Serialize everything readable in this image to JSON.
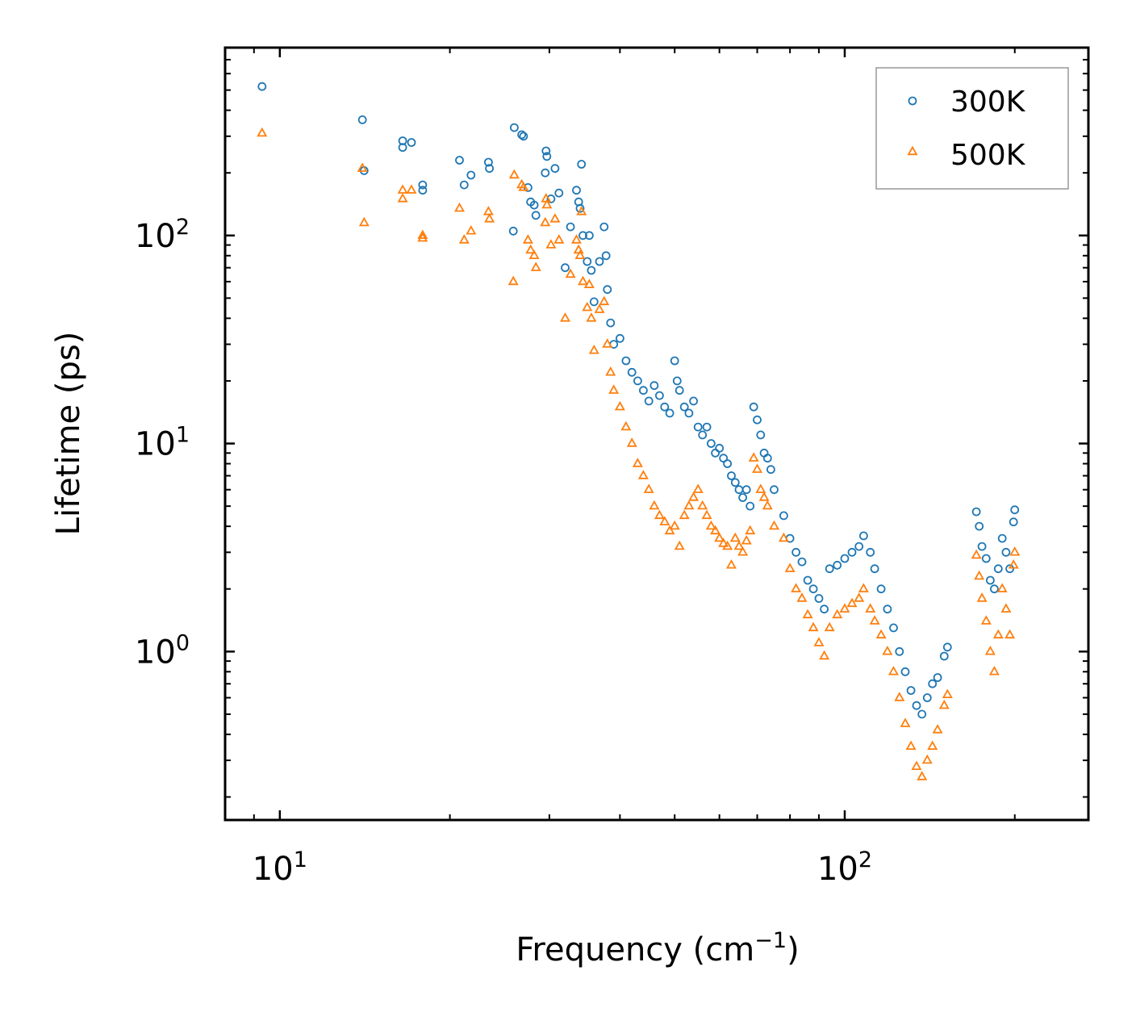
{
  "chart_data": {
    "type": "scatter",
    "title": "",
    "xlabel": "Frequency (cm",
    "xlabel_sup": "−1",
    "xlabel_end": ")",
    "ylabel": "Lifetime (ps)",
    "xscale": "log",
    "yscale": "log",
    "xlim": [
      8.0,
      270
    ],
    "ylim": [
      0.155,
      800
    ],
    "legend_position": "top-right",
    "x_ticks": [
      {
        "base": "10",
        "exp": "1",
        "value": 10
      },
      {
        "base": "10",
        "exp": "2",
        "value": 100
      }
    ],
    "y_ticks": [
      {
        "base": "10",
        "exp": "0",
        "value": 1
      },
      {
        "base": "10",
        "exp": "1",
        "value": 10
      },
      {
        "base": "10",
        "exp": "2",
        "value": 100
      }
    ],
    "series": [
      {
        "name": "300K",
        "color": "#1f77b4",
        "marker": "circle",
        "points": [
          [
            9.3,
            520
          ],
          [
            14.0,
            360
          ],
          [
            14.1,
            205
          ],
          [
            16.5,
            285
          ],
          [
            16.5,
            265
          ],
          [
            17.1,
            280
          ],
          [
            17.9,
            175
          ],
          [
            17.9,
            165
          ],
          [
            20.8,
            230
          ],
          [
            21.2,
            175
          ],
          [
            21.8,
            195
          ],
          [
            23.4,
            225
          ],
          [
            23.5,
            210
          ],
          [
            25.9,
            105
          ],
          [
            26.0,
            330
          ],
          [
            26.8,
            305
          ],
          [
            27.0,
            300
          ],
          [
            27.5,
            170
          ],
          [
            27.8,
            145
          ],
          [
            28.2,
            140
          ],
          [
            28.4,
            125
          ],
          [
            29.5,
            200
          ],
          [
            29.6,
            255
          ],
          [
            29.7,
            240
          ],
          [
            30.2,
            150
          ],
          [
            30.7,
            210
          ],
          [
            31.2,
            160
          ],
          [
            32.0,
            70
          ],
          [
            32.7,
            110
          ],
          [
            33.5,
            165
          ],
          [
            33.8,
            145
          ],
          [
            34.0,
            135
          ],
          [
            34.2,
            220
          ],
          [
            34.4,
            100
          ],
          [
            35.0,
            75
          ],
          [
            35.3,
            100
          ],
          [
            35.6,
            68
          ],
          [
            36.0,
            48
          ],
          [
            36.8,
            75
          ],
          [
            37.5,
            110
          ],
          [
            37.8,
            80
          ],
          [
            38.0,
            55
          ],
          [
            38.5,
            38
          ],
          [
            39.0,
            30
          ],
          [
            40.0,
            32
          ],
          [
            41.0,
            25
          ],
          [
            42.0,
            22
          ],
          [
            43.0,
            20
          ],
          [
            44.0,
            18
          ],
          [
            45.0,
            16
          ],
          [
            46.0,
            19
          ],
          [
            47.0,
            17
          ],
          [
            48.0,
            15
          ],
          [
            49.0,
            14
          ],
          [
            50.0,
            25
          ],
          [
            50.5,
            20
          ],
          [
            51.0,
            18
          ],
          [
            52.0,
            15
          ],
          [
            53.0,
            14
          ],
          [
            54.0,
            16
          ],
          [
            55.0,
            12
          ],
          [
            56.0,
            11
          ],
          [
            57.0,
            12
          ],
          [
            58.0,
            10
          ],
          [
            59.0,
            9
          ],
          [
            60.0,
            9.5
          ],
          [
            61.0,
            8.5
          ],
          [
            62.0,
            8
          ],
          [
            63.0,
            7
          ],
          [
            64.0,
            6.5
          ],
          [
            65.0,
            6
          ],
          [
            66.0,
            5.5
          ],
          [
            67.0,
            6
          ],
          [
            68.0,
            5
          ],
          [
            69.0,
            15
          ],
          [
            70.0,
            13
          ],
          [
            71.0,
            11
          ],
          [
            72.0,
            9
          ],
          [
            73.0,
            8.5
          ],
          [
            74.0,
            7.5
          ],
          [
            75.0,
            6
          ],
          [
            78.0,
            4.5
          ],
          [
            80.0,
            3.5
          ],
          [
            82.0,
            3.0
          ],
          [
            84.0,
            2.7
          ],
          [
            86.0,
            2.2
          ],
          [
            88.0,
            2.0
          ],
          [
            90.0,
            1.8
          ],
          [
            92.0,
            1.6
          ],
          [
            94.0,
            2.5
          ],
          [
            97.0,
            2.6
          ],
          [
            100.0,
            2.8
          ],
          [
            103.0,
            3.0
          ],
          [
            106.0,
            3.2
          ],
          [
            108.0,
            3.6
          ],
          [
            111.0,
            3.0
          ],
          [
            113.0,
            2.5
          ],
          [
            116.0,
            2.0
          ],
          [
            119.0,
            1.6
          ],
          [
            122.0,
            1.3
          ],
          [
            125.0,
            1.0
          ],
          [
            128.0,
            0.8
          ],
          [
            131.0,
            0.65
          ],
          [
            134.0,
            0.55
          ],
          [
            137.0,
            0.5
          ],
          [
            140.0,
            0.6
          ],
          [
            143.0,
            0.7
          ],
          [
            146.0,
            0.75
          ],
          [
            150.0,
            0.95
          ],
          [
            152.0,
            1.05
          ],
          [
            171.0,
            4.7
          ],
          [
            173.0,
            4.0
          ],
          [
            175.0,
            3.2
          ],
          [
            178.0,
            2.8
          ],
          [
            181.0,
            2.2
          ],
          [
            184.0,
            2.0
          ],
          [
            187.0,
            2.5
          ],
          [
            190.0,
            3.5
          ],
          [
            193.0,
            3.0
          ],
          [
            196.0,
            2.5
          ],
          [
            199.0,
            4.2
          ],
          [
            200.0,
            4.8
          ]
        ]
      },
      {
        "name": "500K",
        "color": "#ff7f0e",
        "marker": "triangle",
        "points": [
          [
            9.3,
            310
          ],
          [
            14.0,
            210
          ],
          [
            14.1,
            115
          ],
          [
            16.5,
            165
          ],
          [
            16.5,
            150
          ],
          [
            17.1,
            165
          ],
          [
            17.9,
            100
          ],
          [
            17.9,
            97
          ],
          [
            20.8,
            135
          ],
          [
            21.2,
            95
          ],
          [
            21.8,
            105
          ],
          [
            23.4,
            130
          ],
          [
            23.5,
            120
          ],
          [
            25.9,
            60
          ],
          [
            26.0,
            195
          ],
          [
            26.8,
            175
          ],
          [
            27.0,
            170
          ],
          [
            27.5,
            95
          ],
          [
            27.8,
            85
          ],
          [
            28.2,
            80
          ],
          [
            28.4,
            70
          ],
          [
            29.5,
            115
          ],
          [
            29.6,
            150
          ],
          [
            29.7,
            140
          ],
          [
            30.2,
            90
          ],
          [
            30.7,
            120
          ],
          [
            31.2,
            95
          ],
          [
            32.0,
            40
          ],
          [
            32.7,
            65
          ],
          [
            33.5,
            95
          ],
          [
            33.8,
            85
          ],
          [
            34.0,
            80
          ],
          [
            34.2,
            130
          ],
          [
            34.4,
            60
          ],
          [
            35.0,
            45
          ],
          [
            35.3,
            58
          ],
          [
            35.6,
            40
          ],
          [
            36.0,
            28
          ],
          [
            36.8,
            44
          ],
          [
            37.5,
            48
          ],
          [
            38.0,
            30
          ],
          [
            38.5,
            22
          ],
          [
            39.0,
            18
          ],
          [
            40.0,
            15
          ],
          [
            41.0,
            12
          ],
          [
            42.0,
            10
          ],
          [
            43.0,
            8
          ],
          [
            44.0,
            7
          ],
          [
            45.0,
            6
          ],
          [
            46.0,
            5
          ],
          [
            47.0,
            4.5
          ],
          [
            48.0,
            4.2
          ],
          [
            49.0,
            3.8
          ],
          [
            50.0,
            4
          ],
          [
            51.0,
            3.2
          ],
          [
            52.0,
            4.5
          ],
          [
            53.0,
            5
          ],
          [
            54.0,
            5.5
          ],
          [
            55.0,
            6
          ],
          [
            56.0,
            5
          ],
          [
            57.0,
            4.5
          ],
          [
            58.0,
            4
          ],
          [
            59.0,
            3.8
          ],
          [
            60.0,
            3.5
          ],
          [
            61.0,
            3.3
          ],
          [
            62.0,
            3.2
          ],
          [
            63.0,
            2.6
          ],
          [
            64.0,
            3.5
          ],
          [
            65.0,
            3.2
          ],
          [
            66.0,
            3.0
          ],
          [
            67.0,
            3.4
          ],
          [
            68.0,
            3.8
          ],
          [
            69.0,
            8.5
          ],
          [
            70.0,
            7.5
          ],
          [
            71.0,
            6
          ],
          [
            72.0,
            5.5
          ],
          [
            73.0,
            5
          ],
          [
            75.0,
            4
          ],
          [
            78.0,
            3.5
          ],
          [
            80.0,
            2.5
          ],
          [
            82.0,
            2.0
          ],
          [
            84.0,
            1.8
          ],
          [
            86.0,
            1.5
          ],
          [
            88.0,
            1.3
          ],
          [
            90.0,
            1.1
          ],
          [
            92.0,
            0.95
          ],
          [
            94.0,
            1.3
          ],
          [
            97.0,
            1.5
          ],
          [
            100.0,
            1.6
          ],
          [
            103.0,
            1.7
          ],
          [
            106.0,
            1.8
          ],
          [
            108.0,
            2.0
          ],
          [
            111.0,
            1.6
          ],
          [
            113.0,
            1.4
          ],
          [
            116.0,
            1.2
          ],
          [
            119.0,
            1.0
          ],
          [
            122.0,
            0.8
          ],
          [
            125.0,
            0.6
          ],
          [
            128.0,
            0.45
          ],
          [
            131.0,
            0.35
          ],
          [
            134.0,
            0.28
          ],
          [
            137.0,
            0.25
          ],
          [
            140.0,
            0.3
          ],
          [
            143.0,
            0.35
          ],
          [
            146.0,
            0.42
          ],
          [
            150.0,
            0.55
          ],
          [
            152.0,
            0.62
          ],
          [
            171.0,
            2.9
          ],
          [
            173.0,
            2.3
          ],
          [
            175.0,
            1.8
          ],
          [
            178.0,
            1.4
          ],
          [
            181.0,
            1.0
          ],
          [
            184.0,
            0.8
          ],
          [
            187.0,
            1.2
          ],
          [
            190.0,
            2.0
          ],
          [
            193.0,
            1.6
          ],
          [
            196.0,
            1.2
          ],
          [
            199.0,
            2.6
          ],
          [
            200.0,
            3.0
          ]
        ]
      }
    ]
  }
}
